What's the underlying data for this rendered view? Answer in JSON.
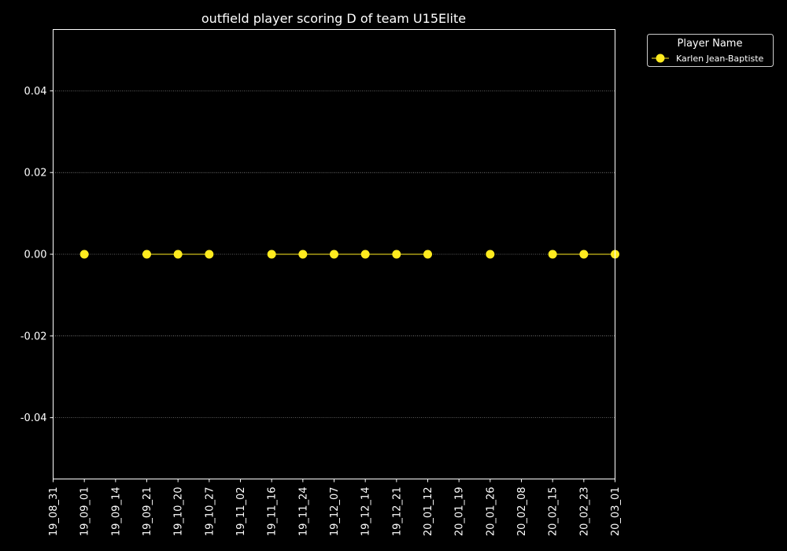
{
  "colors": {
    "background": "#000000",
    "series": "#ffeb1f",
    "grid": "#bbbbbb",
    "axis": "#ffffff"
  },
  "chart_data": {
    "type": "line",
    "title": "outfield player scoring D of team U15Elite",
    "xlabel": "",
    "ylabel": "",
    "categories": [
      "19_08_31",
      "19_09_01",
      "19_09_14",
      "19_09_21",
      "19_10_20",
      "19_10_27",
      "19_11_02",
      "19_11_16",
      "19_11_24",
      "19_12_07",
      "19_12_14",
      "19_12_21",
      "20_01_12",
      "20_01_19",
      "20_01_26",
      "20_02_08",
      "20_02_15",
      "20_02_23",
      "20_03_01"
    ],
    "ylim": [
      -0.055,
      0.055
    ],
    "yticks": [
      "-0.04",
      "-0.02",
      "0.00",
      "0.02",
      "0.04"
    ],
    "ytick_values": [
      -0.04,
      -0.02,
      0.0,
      0.02,
      0.04
    ],
    "grid": {
      "y": true,
      "style": "dotted"
    },
    "legend": {
      "title": "Player Name",
      "placement": "upper-right-outside"
    },
    "series": [
      {
        "name": "Karlen Jean-Baptiste",
        "values": [
          null,
          0,
          null,
          0,
          0,
          0,
          null,
          0,
          0,
          0,
          0,
          0,
          0,
          null,
          0,
          null,
          0,
          0,
          0
        ]
      }
    ]
  }
}
